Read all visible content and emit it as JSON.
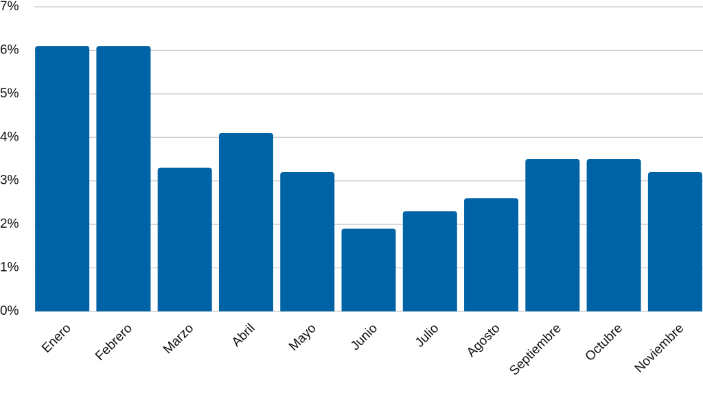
{
  "chart_data": {
    "type": "bar",
    "categories": [
      "Enero",
      "Febrero",
      "Marzo",
      "Abril",
      "Mayo",
      "Junio",
      "Julio",
      "Agosto",
      "Septiembre",
      "Octubre",
      "Noviembre"
    ],
    "values": [
      6.1,
      6.1,
      3.3,
      4.1,
      3.2,
      1.9,
      2.3,
      2.6,
      3.5,
      3.5,
      3.2
    ],
    "color": "#0063a6",
    "ylim": [
      0,
      7
    ],
    "yticks": [
      {
        "value": 0,
        "label": "0%"
      },
      {
        "value": 1,
        "label": "1%"
      },
      {
        "value": 2,
        "label": "2%"
      },
      {
        "value": 3,
        "label": "3%"
      },
      {
        "value": 4,
        "label": "4%"
      },
      {
        "value": 5,
        "label": "5%"
      },
      {
        "value": 6,
        "label": "6%"
      },
      {
        "value": 7,
        "label": "7%"
      }
    ],
    "grid": true
  }
}
